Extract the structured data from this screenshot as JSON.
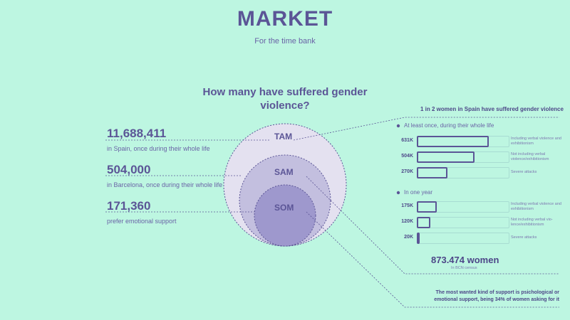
{
  "header": {
    "title": "MARKET",
    "subtitle": "For the time bank"
  },
  "question": "How many have suffered gender violence?",
  "stats": [
    {
      "value": "11,688,411",
      "desc": "in Spain, once during their whole life"
    },
    {
      "value": "504,000",
      "desc": "in Barcelona, once during their whole life"
    },
    {
      "value": "171,360",
      "desc": "prefer emotional support"
    }
  ],
  "circles": [
    "TAM",
    "SAM",
    "SOM"
  ],
  "panel": {
    "heading": "1  in 2 women  in Spain have suffered gender violence",
    "total_value": "873.474 women",
    "total_sub": "In BCN census",
    "footnote_line1": "The most wanted kind of support is psichological or",
    "footnote_line2": "emotional support, being 34% of women asking for it"
  },
  "colors": {
    "background": "#bdf6e1",
    "accent": "#5b5596",
    "tam_fill": "#e4e1f0",
    "sam_fill": "#c3bfdf",
    "som_fill": "#9e98cd"
  },
  "chart_data": {
    "type": "bar",
    "orientation": "horizontal",
    "groups": [
      {
        "title": "At least once, during their whole life",
        "rows": [
          {
            "label": "631K",
            "value": 631,
            "desc": "Including verbal violence and exhibitionism"
          },
          {
            "label": "504K",
            "value": 504,
            "desc": "Not including verbal violence/exhibitionism"
          },
          {
            "label": "270K",
            "value": 270,
            "desc": "Severe attacks"
          }
        ]
      },
      {
        "title": "In one year",
        "rows": [
          {
            "label": "175K",
            "value": 175,
            "desc": "Including verbal violence and exhibitionism"
          },
          {
            "label": "120K",
            "value": 120,
            "desc": "Not including verbal vio-lence/exhibitionism"
          },
          {
            "label": "20K",
            "value": 20,
            "desc": "Severe attacks"
          }
        ]
      }
    ],
    "xlim": [
      0,
      873.474
    ]
  }
}
